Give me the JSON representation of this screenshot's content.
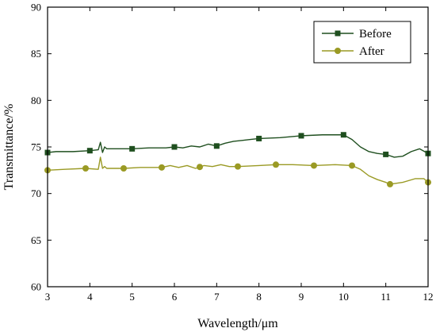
{
  "chart_data": {
    "type": "line",
    "xlabel": "Wavelength/μm",
    "ylabel": "Transmittance/%",
    "xlim": [
      3,
      12
    ],
    "ylim": [
      60,
      90
    ],
    "xticks": [
      3,
      4,
      5,
      6,
      7,
      8,
      9,
      10,
      11,
      12
    ],
    "yticks": [
      60,
      65,
      70,
      75,
      80,
      85,
      90
    ],
    "grid": false,
    "legend_position": "top-right",
    "series": [
      {
        "name": "Before",
        "color": "#1f4f1f",
        "marker": "square",
        "x": [
          3.0,
          3.2,
          3.6,
          4.0,
          4.2,
          4.25,
          4.3,
          4.35,
          4.4,
          4.6,
          5.0,
          5.4,
          5.8,
          6.0,
          6.2,
          6.4,
          6.6,
          6.8,
          7.0,
          7.2,
          7.4,
          7.6,
          7.8,
          8.0,
          8.5,
          9.0,
          9.5,
          10.0,
          10.2,
          10.4,
          10.6,
          10.8,
          11.0,
          11.2,
          11.4,
          11.6,
          11.8,
          12.0
        ],
        "y": [
          74.4,
          74.5,
          74.5,
          74.6,
          74.7,
          75.5,
          74.4,
          75.0,
          74.8,
          74.8,
          74.8,
          74.9,
          74.9,
          75.0,
          74.9,
          75.1,
          75.0,
          75.3,
          75.1,
          75.4,
          75.6,
          75.7,
          75.8,
          75.9,
          76.0,
          76.2,
          76.3,
          76.3,
          75.8,
          75.0,
          74.5,
          74.3,
          74.2,
          73.9,
          74.0,
          74.5,
          74.8,
          74.3
        ],
        "marker_x": [
          3.0,
          4.0,
          5.0,
          6.0,
          7.0,
          8.0,
          9.0,
          10.0,
          11.0,
          12.0
        ]
      },
      {
        "name": "After",
        "color": "#9a9a24",
        "marker": "circle",
        "x": [
          3.0,
          3.4,
          3.9,
          4.2,
          4.25,
          4.3,
          4.35,
          4.4,
          4.8,
          5.2,
          5.7,
          5.9,
          6.1,
          6.3,
          6.5,
          6.7,
          6.9,
          7.1,
          7.3,
          7.5,
          8.0,
          8.4,
          8.8,
          9.3,
          9.8,
          10.2,
          10.4,
          10.6,
          10.8,
          11.0,
          11.1,
          11.4,
          11.7,
          11.9,
          12.0
        ],
        "y": [
          72.5,
          72.6,
          72.7,
          72.6,
          73.9,
          72.7,
          72.9,
          72.7,
          72.7,
          72.8,
          72.8,
          73.0,
          72.8,
          73.0,
          72.7,
          73.0,
          72.9,
          73.1,
          72.9,
          72.9,
          73.0,
          73.1,
          73.1,
          73.0,
          73.1,
          73.0,
          72.6,
          71.9,
          71.5,
          71.2,
          71.0,
          71.2,
          71.6,
          71.6,
          71.2
        ],
        "marker_x": [
          3.0,
          3.9,
          4.8,
          5.7,
          6.6,
          7.5,
          8.4,
          9.3,
          10.2,
          11.1,
          12.0
        ]
      }
    ]
  }
}
